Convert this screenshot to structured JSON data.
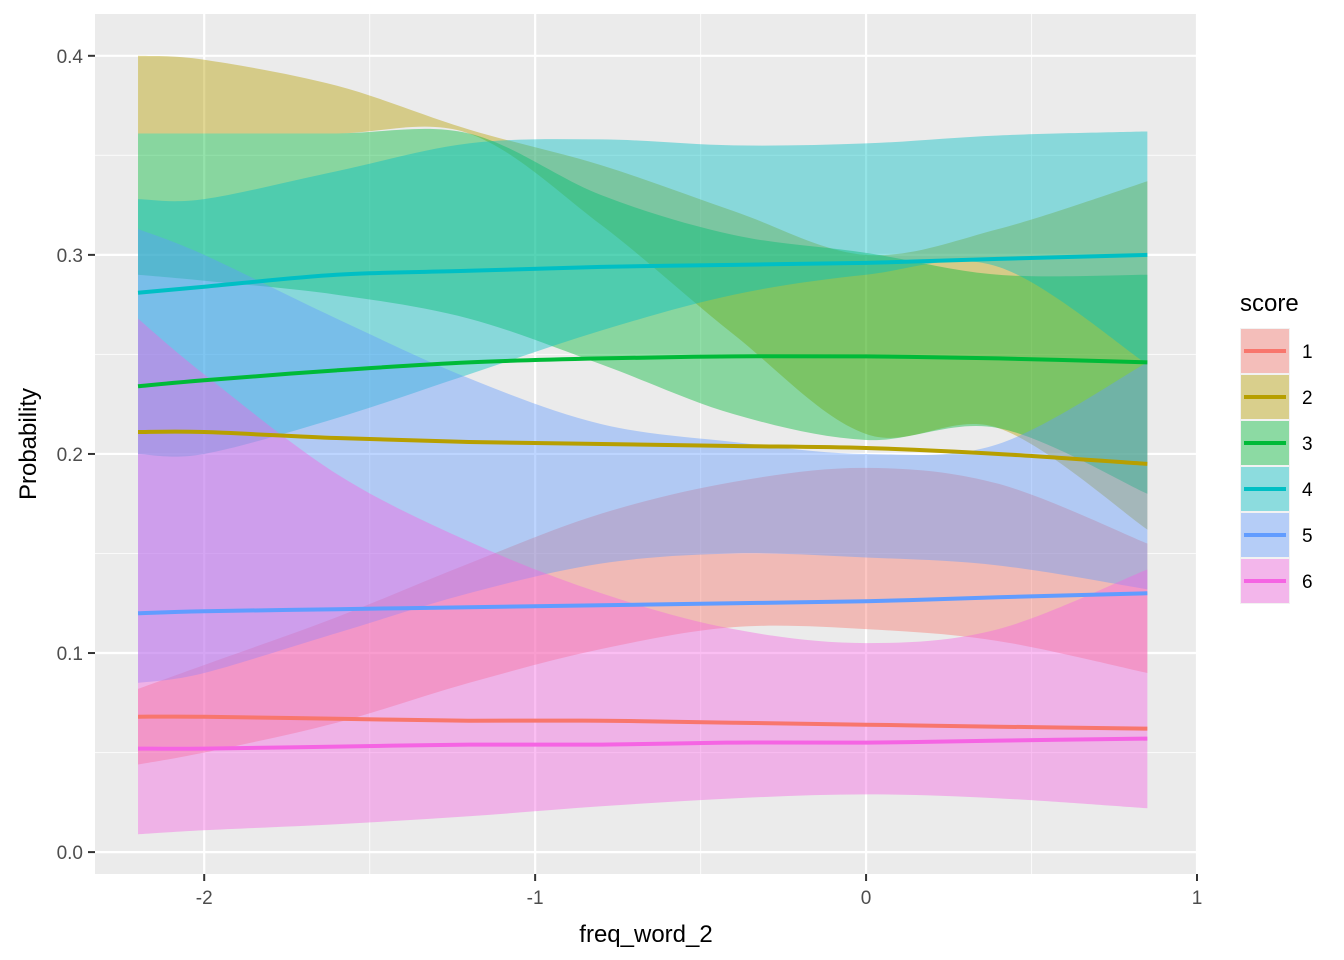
{
  "chart_data": {
    "type": "line",
    "title": "",
    "xlabel": "freq_word_2",
    "ylabel": "Probability",
    "xlim": [
      -2.33,
      1.0
    ],
    "ylim": [
      -0.011,
      0.421
    ],
    "x_ticks": [
      -2,
      -1,
      0,
      1
    ],
    "x_tick_labels": [
      "-2",
      "-1",
      "0",
      "1"
    ],
    "y_ticks": [
      0.0,
      0.1,
      0.2,
      0.3,
      0.4
    ],
    "y_tick_labels": [
      "0.0",
      "0.1",
      "0.2",
      "0.3",
      "0.4"
    ],
    "grid": true,
    "legend": {
      "title": "score",
      "placement": "right"
    },
    "x": [
      -2.2,
      -2.0,
      -1.6,
      -1.2,
      -0.8,
      -0.4,
      0.0,
      0.4,
      0.85
    ],
    "series": [
      {
        "name": "1",
        "color": "#F8766D",
        "values": [
          0.068,
          0.068,
          0.067,
          0.066,
          0.066,
          0.065,
          0.064,
          0.063,
          0.062
        ],
        "lower": [
          0.044,
          0.05,
          0.065,
          0.085,
          0.102,
          0.113,
          0.112,
          0.106,
          0.09
        ],
        "upper": [
          0.082,
          0.094,
          0.118,
          0.145,
          0.17,
          0.186,
          0.193,
          0.185,
          0.155
        ]
      },
      {
        "name": "2",
        "color": "#B79F00",
        "values": [
          0.211,
          0.211,
          0.208,
          0.206,
          0.205,
          0.204,
          0.203,
          0.2,
          0.195
        ],
        "lower": [
          0.361,
          0.361,
          0.361,
          0.361,
          0.315,
          0.26,
          0.21,
          0.213,
          0.162
        ],
        "upper": [
          0.4,
          0.398,
          0.385,
          0.363,
          0.345,
          0.322,
          0.3,
          0.313,
          0.337
        ]
      },
      {
        "name": "3",
        "color": "#00BA38",
        "values": [
          0.234,
          0.237,
          0.242,
          0.246,
          0.248,
          0.249,
          0.249,
          0.248,
          0.246
        ],
        "lower": [
          0.29,
          0.287,
          0.28,
          0.268,
          0.245,
          0.22,
          0.207,
          0.213,
          0.18
        ],
        "upper": [
          0.361,
          0.361,
          0.361,
          0.361,
          0.33,
          0.31,
          0.301,
          0.29,
          0.29
        ]
      },
      {
        "name": "4",
        "color": "#00BFC4",
        "values": [
          0.281,
          0.284,
          0.29,
          0.292,
          0.294,
          0.295,
          0.296,
          0.298,
          0.3
        ],
        "lower": [
          0.2,
          0.2,
          0.218,
          0.24,
          0.262,
          0.28,
          0.29,
          0.294,
          0.245
        ],
        "upper": [
          0.328,
          0.328,
          0.342,
          0.356,
          0.358,
          0.355,
          0.356,
          0.36,
          0.362
        ]
      },
      {
        "name": "5",
        "color": "#619CFF",
        "values": [
          0.12,
          0.121,
          0.122,
          0.123,
          0.124,
          0.125,
          0.126,
          0.128,
          0.13
        ],
        "lower": [
          0.085,
          0.09,
          0.11,
          0.13,
          0.145,
          0.15,
          0.148,
          0.144,
          0.132
        ],
        "upper": [
          0.313,
          0.3,
          0.268,
          0.238,
          0.215,
          0.206,
          0.2,
          0.205,
          0.246
        ]
      },
      {
        "name": "6",
        "color": "#F564E3",
        "values": [
          0.052,
          0.052,
          0.053,
          0.054,
          0.054,
          0.055,
          0.055,
          0.056,
          0.057
        ],
        "lower": [
          0.009,
          0.011,
          0.014,
          0.018,
          0.023,
          0.027,
          0.029,
          0.027,
          0.022
        ],
        "upper": [
          0.268,
          0.24,
          0.19,
          0.156,
          0.13,
          0.112,
          0.105,
          0.112,
          0.142
        ]
      }
    ]
  }
}
